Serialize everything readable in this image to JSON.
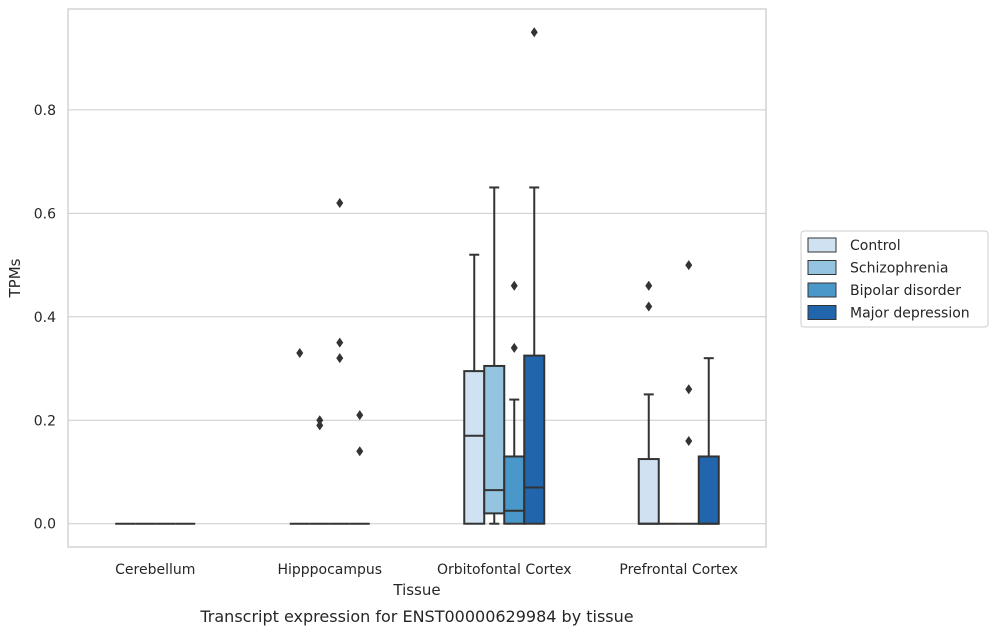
{
  "chart_data": {
    "type": "box",
    "title": "Transcript expression for ENST00000629984 by tissue",
    "xlabel": "Tissue",
    "ylabel": "TPMs",
    "ylim": [
      -0.045,
      0.995
    ],
    "yticks": [
      "0.0",
      "0.2",
      "0.4",
      "0.6",
      "0.8"
    ],
    "grid": "horizontal",
    "legend_position": "right",
    "categories": [
      "Cerebellum",
      "Hipppocampus",
      "Orbitofontal Cortex",
      "Prefrontal Cortex"
    ],
    "series": [
      {
        "name": "Control",
        "color": "#d0e1f2",
        "boxes": [
          {
            "q1": 0,
            "median": 0,
            "q3": 0,
            "whislo": 0,
            "whishi": 0,
            "fliers": []
          },
          {
            "q1": 0,
            "median": 0,
            "q3": 0,
            "whislo": 0,
            "whishi": 0,
            "fliers": [
              0.33
            ]
          },
          {
            "q1": 0,
            "median": 0.17,
            "q3": 0.295,
            "whislo": 0,
            "whishi": 0.52,
            "fliers": []
          },
          {
            "q1": 0,
            "median": 0,
            "q3": 0.125,
            "whislo": 0,
            "whishi": 0.25,
            "fliers": [
              0.42,
              0.46
            ]
          }
        ]
      },
      {
        "name": "Schizophrenia",
        "color": "#94c4df",
        "boxes": [
          {
            "q1": 0,
            "median": 0,
            "q3": 0,
            "whislo": 0,
            "whishi": 0,
            "fliers": []
          },
          {
            "q1": 0,
            "median": 0,
            "q3": 0,
            "whislo": 0,
            "whishi": 0,
            "fliers": [
              0.19,
              0.2
            ]
          },
          {
            "q1": 0.02,
            "median": 0.065,
            "q3": 0.305,
            "whislo": 0,
            "whishi": 0.65,
            "fliers": []
          },
          {
            "q1": 0,
            "median": 0,
            "q3": 0,
            "whislo": 0,
            "whishi": 0,
            "fliers": []
          }
        ]
      },
      {
        "name": "Bipolar disorder",
        "color": "#4a98c9",
        "boxes": [
          {
            "q1": 0,
            "median": 0,
            "q3": 0,
            "whislo": 0,
            "whishi": 0,
            "fliers": []
          },
          {
            "q1": 0,
            "median": 0,
            "q3": 0,
            "whislo": 0,
            "whishi": 0,
            "fliers": [
              0.62,
              0.35,
              0.32
            ]
          },
          {
            "q1": 0,
            "median": 0.025,
            "q3": 0.13,
            "whislo": 0,
            "whishi": 0.24,
            "fliers": [
              0.34,
              0.46
            ]
          },
          {
            "q1": 0,
            "median": 0,
            "q3": 0,
            "whislo": 0,
            "whishi": 0,
            "fliers": [
              0.16,
              0.26,
              0.5
            ]
          }
        ]
      },
      {
        "name": "Major depression",
        "color": "#2166ac",
        "boxes": [
          {
            "q1": 0,
            "median": 0,
            "q3": 0,
            "whislo": 0,
            "whishi": 0,
            "fliers": []
          },
          {
            "q1": 0,
            "median": 0,
            "q3": 0,
            "whislo": 0,
            "whishi": 0,
            "fliers": [
              0.21,
              0.14
            ]
          },
          {
            "q1": 0,
            "median": 0.07,
            "q3": 0.325,
            "whislo": 0,
            "whishi": 0.65,
            "fliers": [
              0.95
            ]
          },
          {
            "q1": 0,
            "median": 0,
            "q3": 0.13,
            "whislo": 0,
            "whishi": 0.32,
            "fliers": []
          }
        ]
      }
    ]
  }
}
